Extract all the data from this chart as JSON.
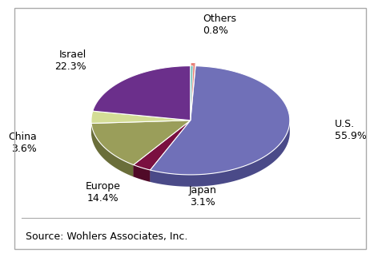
{
  "labels": [
    "Others",
    "U.S.",
    "Japan",
    "Europe",
    "China",
    "Israel"
  ],
  "values": [
    0.8,
    55.9,
    3.1,
    14.4,
    3.6,
    22.3
  ],
  "colors": [
    "#e8827a",
    "#7070b8",
    "#7a1040",
    "#9a9e5a",
    "#d4dd96",
    "#6b2f8b"
  ],
  "colors_dark": [
    "#b05050",
    "#4a4a88",
    "#500a28",
    "#6a6e3a",
    "#a4ad66",
    "#4a1a6a"
  ],
  "cyan_color": "#80c8c0",
  "explode": [
    0.06,
    0.0,
    0.0,
    0.0,
    0.0,
    0.0
  ],
  "label_texts": [
    "Others\n0.8%",
    "U.S.\n55.9%",
    "Japan\n3.1%",
    "Europe\n14.4%",
    "China\n3.6%",
    "Israel\n22.3%"
  ],
  "source_text": "Source: Wohlers Associates, Inc.",
  "background_color": "#ffffff",
  "border_color": "#aaaaaa",
  "startangle": 90,
  "font_size": 9,
  "source_font_size": 9,
  "depth": 0.12,
  "yscale": 0.55
}
